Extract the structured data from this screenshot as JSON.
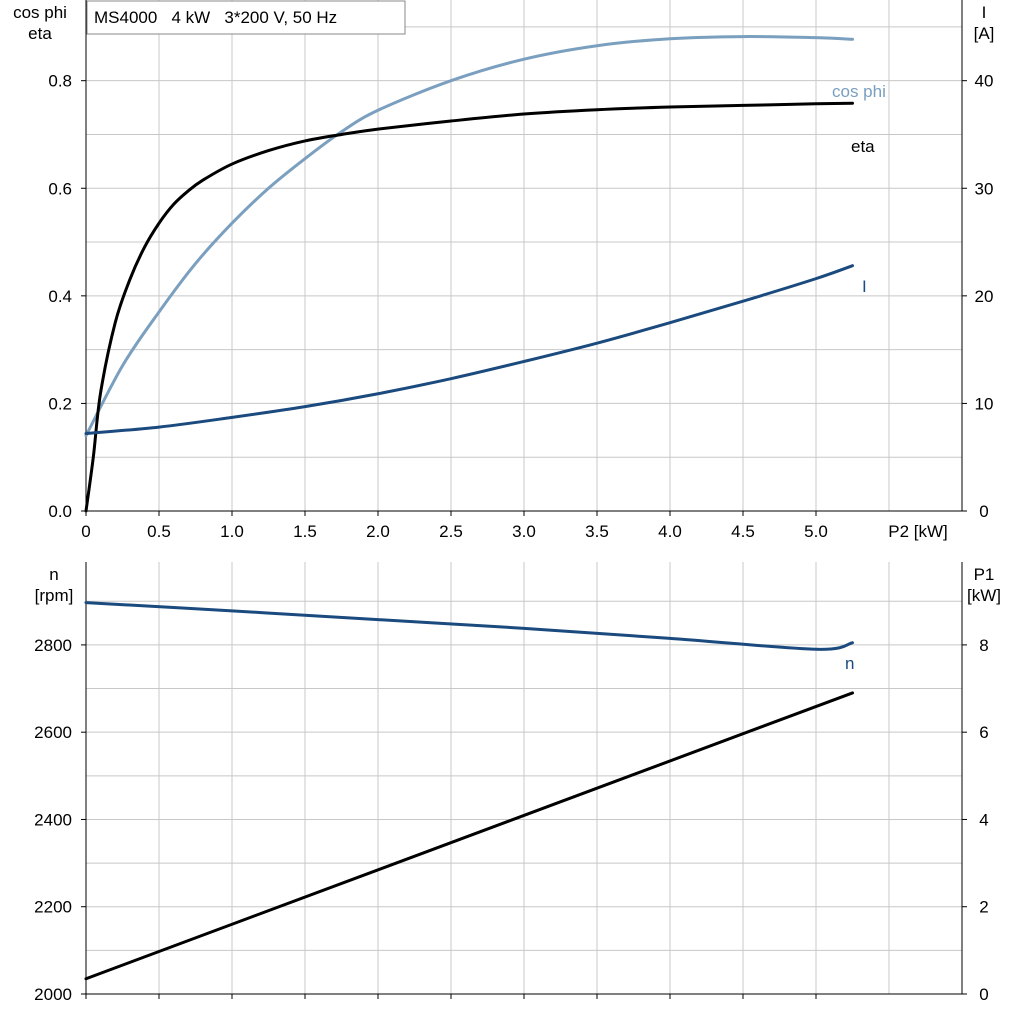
{
  "chart_data": [
    {
      "type": "line",
      "title": "MS4000   4 kW   3*200 V, 50 Hz",
      "xlabel": "P2 [kW]",
      "ylabel_left": [
        "cos phi",
        "eta"
      ],
      "ylabel_right": [
        "I",
        "[A]"
      ],
      "xlim": [
        0,
        6.0
      ],
      "ylim_left": [
        0,
        0.95
      ],
      "ylim_right": [
        0,
        47.5
      ],
      "xticks": [
        0,
        0.5,
        1.0,
        1.5,
        2.0,
        2.5,
        3.0,
        3.5,
        4.0,
        4.5,
        5.0
      ],
      "xtick_labels": [
        "0",
        "0.5",
        "1.0",
        "1.5",
        "2.0",
        "2.5",
        "3.0",
        "3.5",
        "4.0",
        "4.5",
        "5.0"
      ],
      "yticks_left": [
        0,
        0.2,
        0.4,
        0.6,
        0.8
      ],
      "ytick_labels_left": [
        "0.0",
        "0.2",
        "0.4",
        "0.6",
        "0.8"
      ],
      "yticks_right": [
        0,
        10,
        20,
        30,
        40
      ],
      "ytick_labels_right": [
        "0",
        "10",
        "20",
        "30",
        "40"
      ],
      "grid": true,
      "series": [
        {
          "name": "cos phi",
          "axis": "left",
          "color": "#7a9fbf",
          "x": [
            0,
            0.25,
            0.5,
            0.75,
            1.0,
            1.25,
            1.5,
            1.75,
            2.0,
            2.5,
            3.0,
            3.5,
            4.0,
            4.5,
            5.0,
            5.25
          ],
          "y": [
            0.14,
            0.27,
            0.37,
            0.46,
            0.535,
            0.6,
            0.655,
            0.705,
            0.745,
            0.8,
            0.84,
            0.865,
            0.878,
            0.882,
            0.88,
            0.877
          ]
        },
        {
          "name": "eta",
          "axis": "left",
          "color": "#000000",
          "x": [
            0,
            0.05,
            0.1,
            0.2,
            0.3,
            0.4,
            0.5,
            0.6,
            0.7,
            0.8,
            1.0,
            1.25,
            1.5,
            1.75,
            2.0,
            2.5,
            3.0,
            3.5,
            4.0,
            4.5,
            5.0,
            5.25
          ],
          "y": [
            0.0,
            0.1,
            0.22,
            0.35,
            0.43,
            0.49,
            0.535,
            0.57,
            0.595,
            0.615,
            0.645,
            0.67,
            0.688,
            0.7,
            0.71,
            0.725,
            0.738,
            0.746,
            0.751,
            0.754,
            0.757,
            0.758
          ]
        },
        {
          "name": "I",
          "axis": "right",
          "color": "#1a4a7e",
          "x": [
            0,
            0.5,
            1.0,
            1.5,
            2.0,
            2.5,
            3.0,
            3.5,
            4.0,
            4.5,
            5.0,
            5.25
          ],
          "y": [
            7.2,
            7.8,
            8.7,
            9.7,
            10.9,
            12.3,
            13.9,
            15.6,
            17.5,
            19.5,
            21.6,
            22.8
          ]
        }
      ]
    },
    {
      "type": "line",
      "xlabel": "",
      "ylabel_left": [
        "n",
        "[rpm]"
      ],
      "ylabel_right": [
        "P1",
        "[kW]"
      ],
      "xlim": [
        0,
        6.0
      ],
      "ylim_left": [
        2000,
        2990
      ],
      "ylim_right": [
        0,
        9.9
      ],
      "xticks": [
        0,
        0.5,
        1.0,
        1.5,
        2.0,
        2.5,
        3.0,
        3.5,
        4.0,
        4.5,
        5.0
      ],
      "yticks_left": [
        2000,
        2200,
        2400,
        2600,
        2800
      ],
      "ytick_labels_left": [
        "2000",
        "2200",
        "2400",
        "2600",
        "2800"
      ],
      "yticks_right": [
        0,
        2,
        4,
        6,
        8
      ],
      "ytick_labels_right": [
        "0",
        "2",
        "4",
        "6",
        "8"
      ],
      "grid": true,
      "series": [
        {
          "name": "n",
          "axis": "left",
          "color": "#1a4a7e",
          "x": [
            0,
            1.0,
            2.0,
            3.0,
            4.0,
            5.0,
            5.25
          ],
          "y": [
            2897,
            2878,
            2858,
            2838,
            2815,
            2790,
            2805
          ]
        },
        {
          "axis": "right",
          "color": "#000000",
          "x": [
            0,
            5.25
          ],
          "y": [
            0.35,
            6.9
          ]
        }
      ]
    }
  ]
}
